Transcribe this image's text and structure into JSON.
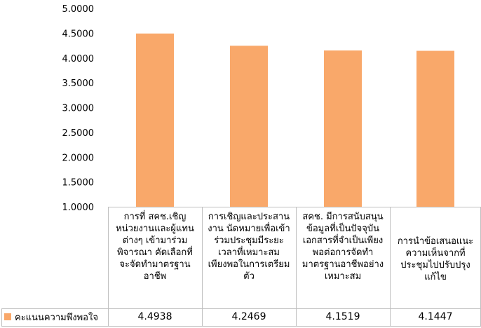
{
  "chart_data": {
    "type": "bar",
    "categories": [
      "การที่ สคช.เชิญหน่วยงานและผู้แทนต่างๆ เข้ามาร่วมพิจารณา คัดเลือกที่จะจัดทำมาตรฐานอาชีพ",
      "การเชิญและประสานงาน นัดหมายเพื่อเข้าร่วมประชุมมีระยะเวลาที่เหมาะสม เพียงพอในการเตรียมตัว",
      "สคช. มีการสนับสนุนข้อมูลที่เป็นปัจจุบันเอกสารที่จำเป็นเพียงพอต่อการจัดทำมาตรฐานอาชีพอย่างเหมาะสม",
      "การนำข้อเสนอแนะความเห็นจากที่ประชุมไปปรับปรุงแก้ไข"
    ],
    "series": [
      {
        "name": "คะแนนความพึงพอใจ",
        "values": [
          4.4938,
          4.2469,
          4.1519,
          4.1447
        ],
        "color": "#F9A86A"
      }
    ],
    "value_labels": [
      "4.4938",
      "4.2469",
      "4.1519",
      "4.1447"
    ],
    "yticks": [
      "1.0000",
      "1.5000",
      "2.0000",
      "2.5000",
      "3.0000",
      "3.5000",
      "4.0000",
      "4.5000",
      "5.0000"
    ],
    "ylim": [
      1,
      5
    ],
    "grid": false,
    "legend_position": "bottom-left data table",
    "title": "",
    "xlabel": "",
    "ylabel": ""
  }
}
